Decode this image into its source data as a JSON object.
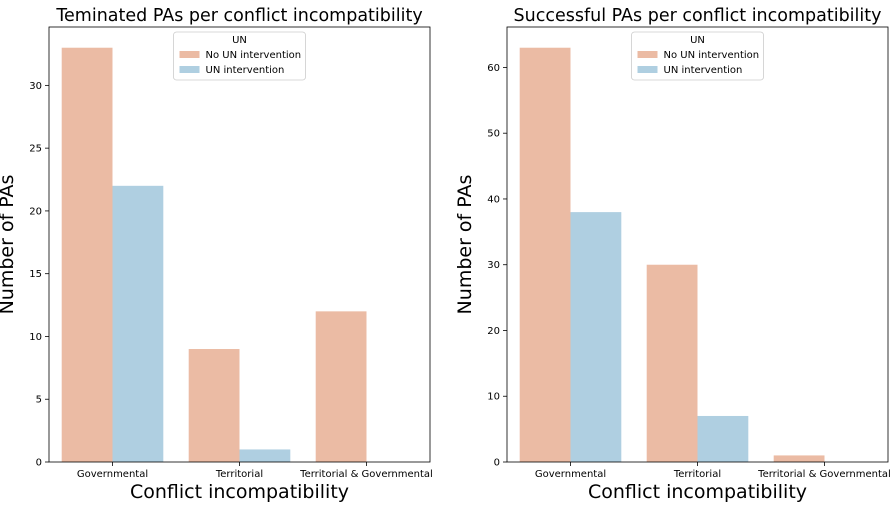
{
  "chart_data": [
    {
      "type": "bar",
      "title": "Teminated PAs per conflict incompatibility",
      "xlabel": "Conflict incompatibility",
      "ylabel": "Number of PAs",
      "categories": [
        "Governmental",
        "Territorial",
        "Territorial & Governmental"
      ],
      "series": [
        {
          "name": "No UN intervention",
          "values": [
            33,
            9,
            12
          ]
        },
        {
          "name": "UN intervention",
          "values": [
            22,
            1,
            0
          ]
        }
      ],
      "yticks": [
        0,
        5,
        10,
        15,
        20,
        25,
        30
      ],
      "ylim": [
        0,
        34.65
      ],
      "legend": {
        "title": "UN",
        "placement": "top-center"
      },
      "grid": false
    },
    {
      "type": "bar",
      "title": "Successful PAs per conflict incompatibility",
      "xlabel": "Conflict incompatibility",
      "ylabel": "Number of PAs",
      "categories": [
        "Governmental",
        "Territorial",
        "Territorial & Governmental"
      ],
      "series": [
        {
          "name": "No UN intervention",
          "values": [
            63,
            30,
            1
          ]
        },
        {
          "name": "UN intervention",
          "values": [
            38,
            7,
            0
          ]
        }
      ],
      "yticks": [
        0,
        10,
        20,
        30,
        40,
        50,
        60
      ],
      "ylim": [
        0,
        66.15
      ],
      "legend": {
        "title": "UN",
        "placement": "top-center"
      },
      "grid": false
    }
  ],
  "colors": {
    "No UN intervention": "#ebbba4",
    "UN intervention": "#afcfe1"
  }
}
